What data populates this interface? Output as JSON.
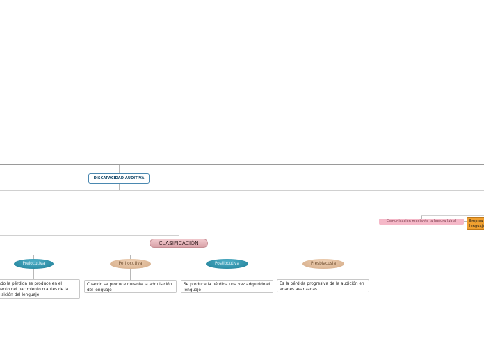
{
  "root": {
    "label": "DISCAPACIDAD AUDITIVA"
  },
  "classification": {
    "label": "CLASIFICACIÓN",
    "items": [
      {
        "label": "Prelocutiva",
        "color": "teal",
        "description": "Cuando la pérdida se produce en el momento del nacimiento o antes de la adquisición del lenguaje"
      },
      {
        "label": "Perilocutiva",
        "color": "tan",
        "description": "Cuando se produce durante la adquisición del lenguaje"
      },
      {
        "label": "Postlocutiva",
        "color": "teal",
        "description": "Se produce la pérdida una vez adquirido el lenguaje"
      },
      {
        "label": "Presbiacusia",
        "color": "tan",
        "description": "Es la pérdida progresiva de la audición en edades avanzadas"
      }
    ]
  },
  "communication": {
    "lip_reading": "Comunicación mediante la lectura labial",
    "sign_language": "Emplea lenguaje"
  },
  "colors": {
    "root_border": "#4a88b0",
    "classification_fill": "#e8b8be",
    "teal": "#2a8aa2",
    "tan": "#e2bd9c",
    "pink": "#f5b8c8",
    "orange": "#f0a030",
    "connector": "#b8b8b8"
  }
}
